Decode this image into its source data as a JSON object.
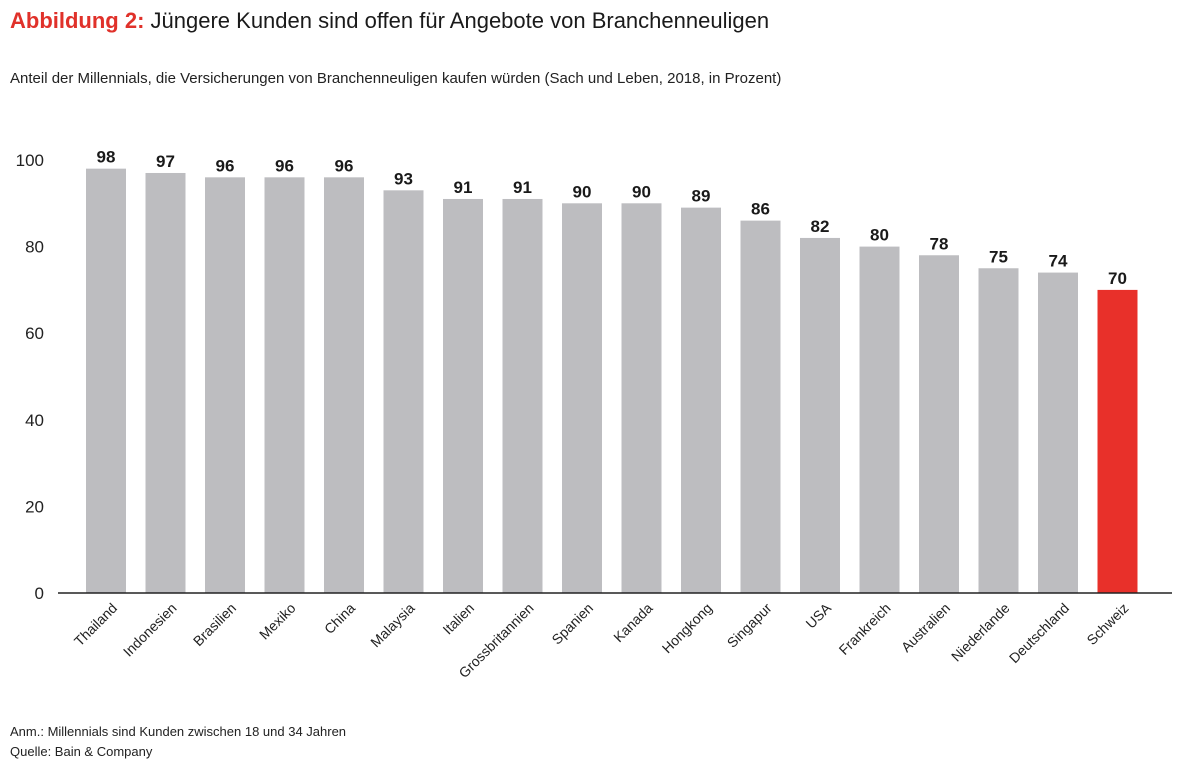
{
  "title": {
    "label": "Abbildung 2:",
    "text": " Jüngere Kunden sind offen für Angebote von Branchenneuligen"
  },
  "subtitle": "Anteil der Millennials, die Versicherungen von Branchenneuligen kaufen würden (Sach und Leben, 2018, in Prozent)",
  "note": "Anm.: Millennials sind Kunden zwischen 18 und 34 Jahren",
  "source": "Quelle: Bain & Company",
  "colors": {
    "bar": "#bdbdc0",
    "highlight": "#e8302a",
    "accent": "#e0312a"
  },
  "chart_data": {
    "type": "bar",
    "title": "Jüngere Kunden sind offen für Angebote von Branchenneuligen",
    "xlabel": "",
    "ylabel": "",
    "ylim": [
      0,
      100
    ],
    "yticks": [
      0,
      20,
      40,
      60,
      80,
      100
    ],
    "grid": false,
    "categories": [
      "Thailand",
      "Indonesien",
      "Brasilien",
      "Mexiko",
      "China",
      "Malaysia",
      "Italien",
      "Grossbritannien",
      "Spanien",
      "Kanada",
      "Hongkong",
      "Singapur",
      "USA",
      "Frankreich",
      "Australien",
      "Niederlande",
      "Deutschland",
      "Schweiz"
    ],
    "values": [
      98,
      97,
      96,
      96,
      96,
      93,
      91,
      91,
      90,
      90,
      89,
      86,
      82,
      80,
      78,
      75,
      74,
      70
    ],
    "highlight": "Schweiz"
  }
}
